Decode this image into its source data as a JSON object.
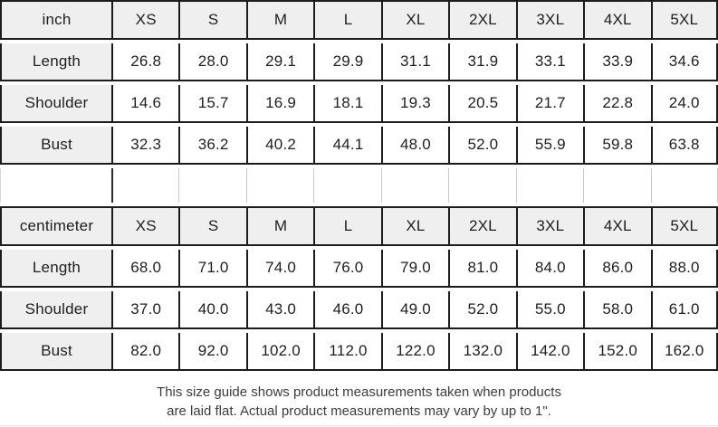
{
  "colors": {
    "cell_background_gray": "#efefef",
    "border_dark": "#1c1c1c",
    "border_light": "#c9c9c9",
    "text": "#1e1e1e",
    "footer_text": "#3c3c3c"
  },
  "size_chart": {
    "sections": [
      {
        "unit": "inch",
        "sizes": [
          "XS",
          "S",
          "M",
          "L",
          "XL",
          "2XL",
          "3XL",
          "4XL",
          "5XL"
        ],
        "rows": [
          {
            "label": "Length",
            "values": [
              "26.8",
              "28.0",
              "29.1",
              "29.9",
              "31.1",
              "31.9",
              "33.1",
              "33.9",
              "34.6"
            ]
          },
          {
            "label": "Shoulder",
            "values": [
              "14.6",
              "15.7",
              "16.9",
              "18.1",
              "19.3",
              "20.5",
              "21.7",
              "22.8",
              "24.0"
            ]
          },
          {
            "label": "Bust",
            "values": [
              "32.3",
              "36.2",
              "40.2",
              "44.1",
              "48.0",
              "52.0",
              "55.9",
              "59.8",
              "63.8"
            ]
          }
        ]
      },
      {
        "unit": "centimeter",
        "sizes": [
          "XS",
          "S",
          "M",
          "L",
          "XL",
          "2XL",
          "3XL",
          "4XL",
          "5XL"
        ],
        "rows": [
          {
            "label": "Length",
            "values": [
              "68.0",
              "71.0",
              "74.0",
              "76.0",
              "79.0",
              "81.0",
              "84.0",
              "86.0",
              "88.0"
            ]
          },
          {
            "label": "Shoulder",
            "values": [
              "37.0",
              "40.0",
              "43.0",
              "46.0",
              "49.0",
              "52.0",
              "55.0",
              "58.0",
              "61.0"
            ]
          },
          {
            "label": "Bust",
            "values": [
              "82.0",
              "92.0",
              "102.0",
              "112.0",
              "122.0",
              "132.0",
              "142.0",
              "152.0",
              "162.0"
            ]
          }
        ]
      }
    ]
  },
  "footer": {
    "line1": "This size guide shows product measurements taken when products",
    "line2": "are laid flat. Actual product measurements may vary by up to 1\"."
  }
}
